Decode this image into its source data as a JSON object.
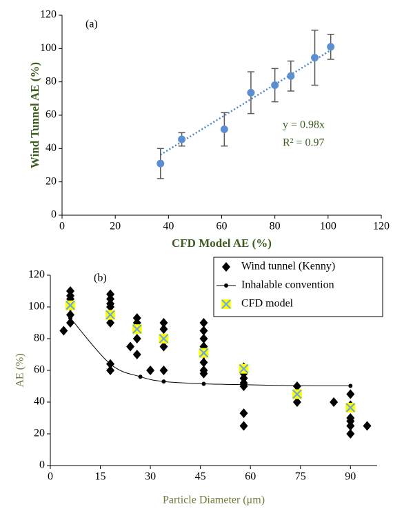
{
  "chart_data": [
    {
      "type": "scatter",
      "panel_label": "(a)",
      "x_label": "CFD Model AE (%)",
      "y_label": "Wind Tunnel AE (%)",
      "x": [
        37,
        45,
        61,
        71,
        80,
        86,
        95,
        101
      ],
      "values": [
        31,
        45.5,
        51.5,
        73.5,
        78,
        83.5,
        94.5,
        101
      ],
      "errors": [
        9,
        4,
        10,
        12.5,
        10,
        9,
        16.5,
        7.5
      ],
      "color": "#5b8fd1",
      "error_color": "#595959",
      "trendline": {
        "slope": 0.98,
        "label": "y = 0.98x",
        "r2_label": "R² = 0.97",
        "color": "#4f86c6"
      },
      "xlim": [
        0,
        120
      ],
      "xticks": [
        0,
        20,
        40,
        60,
        80,
        100,
        120
      ],
      "ylim": [
        0,
        120
      ],
      "yticks": [
        0,
        20,
        40,
        60,
        80,
        100,
        120
      ]
    },
    {
      "type": "scatter",
      "panel_label": "(b)",
      "x_label": "Particle Diameter (μm)",
      "y_label": "AE (%)",
      "legend": "upper right",
      "series": [
        {
          "name": "Wind tunnel (Kenny)",
          "color": "#000000",
          "marker": "diamond",
          "x": [
            4,
            6,
            6,
            6,
            6,
            6,
            6,
            18,
            18,
            18,
            18,
            18,
            18,
            18,
            18,
            24,
            26,
            26,
            26,
            26,
            26,
            30,
            34,
            34,
            34,
            34,
            34,
            46,
            46,
            46,
            46,
            46,
            46,
            46,
            46,
            58,
            58,
            58,
            58,
            58,
            58,
            58,
            74,
            74,
            74,
            85,
            90,
            90,
            90,
            90,
            90,
            90,
            95
          ],
          "values": [
            85,
            110,
            107,
            105,
            100,
            95,
            90,
            108,
            105,
            102,
            100,
            96,
            90,
            64,
            60,
            75,
            93,
            90,
            86,
            80,
            70,
            60,
            90,
            86,
            80,
            75,
            60,
            90,
            85,
            80,
            75,
            70,
            65,
            60,
            58,
            62,
            58,
            55,
            52,
            50,
            33,
            25,
            50,
            45,
            40,
            40,
            45,
            38,
            30,
            28,
            25,
            20,
            25
          ]
        },
        {
          "name": "Inhalable convention",
          "color": "#000000",
          "marker": "circle",
          "line": true,
          "x": [
            6,
            18,
            27,
            34,
            46,
            58,
            74,
            90
          ],
          "values": [
            93,
            64,
            56,
            53,
            51.5,
            51,
            50.3,
            50.2
          ]
        },
        {
          "name": "CFD model",
          "color": "#ffff00",
          "marker": "x-square",
          "cross_color": "#6fa8dc",
          "x": [
            6,
            18,
            26,
            34,
            46,
            58,
            74,
            90
          ],
          "values": [
            101,
            95,
            86,
            80,
            71,
            61,
            45,
            36.5
          ]
        }
      ],
      "xlim": [
        0,
        98
      ],
      "xticks": [
        0,
        15,
        30,
        45,
        60,
        75,
        90
      ],
      "ylim": [
        0,
        120
      ],
      "yticks": [
        0,
        20,
        40,
        60,
        80,
        100,
        120
      ]
    }
  ]
}
